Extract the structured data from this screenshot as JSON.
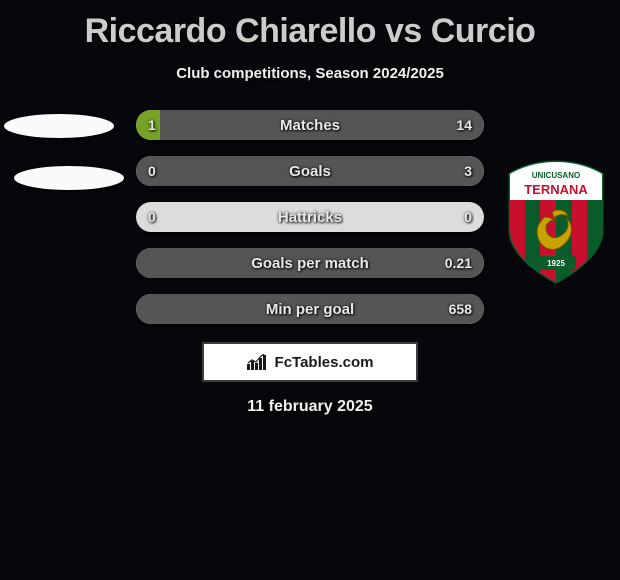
{
  "title": "Riccardo Chiarello vs Curcio",
  "subtitle": "Club competitions, Season 2024/2025",
  "date": "11 february 2025",
  "branding": "FcTables.com",
  "fill_colors": {
    "left": "#76a227",
    "right": "#555555"
  },
  "background_color": "#05070a",
  "bar_background": "#dcdcdc",
  "stats": [
    {
      "label": "Matches",
      "left_val": "1",
      "right_val": "14",
      "left_pct": 7,
      "right_pct": 93
    },
    {
      "label": "Goals",
      "left_val": "0",
      "right_val": "3",
      "left_pct": 0,
      "right_pct": 100
    },
    {
      "label": "Hattricks",
      "left_val": "0",
      "right_val": "0",
      "left_pct": 0,
      "right_pct": 0
    },
    {
      "label": "Goals per match",
      "left_val": "",
      "right_val": "0.21",
      "left_pct": 0,
      "right_pct": 100
    },
    {
      "label": "Min per goal",
      "left_val": "",
      "right_val": "658",
      "left_pct": 0,
      "right_pct": 100
    }
  ],
  "crest": {
    "top_text": "UNICUSANO",
    "main_text": "TERNANA",
    "year": "1925",
    "outer_color": "#ffffff",
    "stripe_red": "#c8102e",
    "stripe_green": "#0a5c2a",
    "dragon_color": "#c9a100"
  }
}
